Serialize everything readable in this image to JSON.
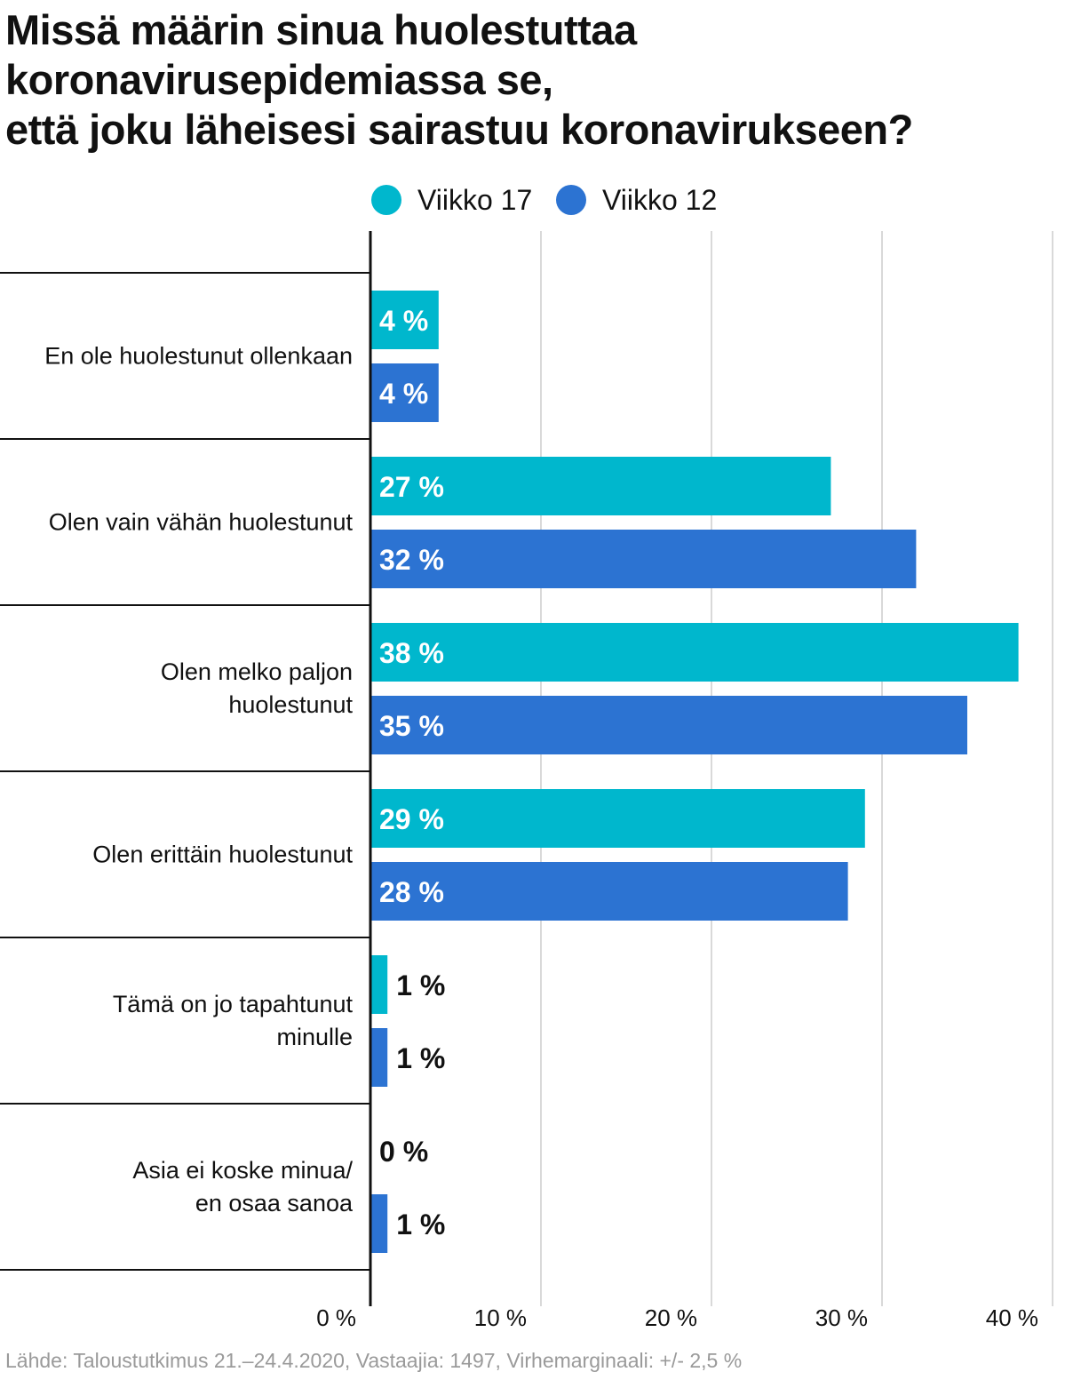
{
  "title_lines": [
    "Missä määrin sinua huolestuttaa",
    "koronavirusepidemiassa se,",
    "että joku läheisesi sairastuu koronavirukseen?"
  ],
  "footer": "Lähde: Taloustutkimus 21.–24.4.2020, Vastaajia: 1497, Virhemarginaali: +/- 2,5 %",
  "colors": {
    "week17": "#00b7cd",
    "week12": "#2c73d2",
    "grid": "#d9d9d9",
    "axis": "#111111"
  },
  "chart_data": {
    "type": "bar",
    "orientation": "horizontal",
    "title": "Missä määrin sinua huolestuttaa koronavirusepidemiassa se, että joku läheisesi sairastuu koronavirukseen?",
    "categories": [
      [
        "En ole huolestunut ollenkaan"
      ],
      [
        "Olen vain vähän huolestunut"
      ],
      [
        "Olen melko paljon",
        "huolestunut"
      ],
      [
        "Olen erittäin huolestunut"
      ],
      [
        "Tämä on jo tapahtunut",
        "minulle"
      ],
      [
        "Asia ei koske minua/",
        "en osaa sanoa"
      ]
    ],
    "series": [
      {
        "name": "Viikko 17",
        "color": "#00b7cd",
        "values": [
          4,
          27,
          38,
          29,
          1,
          0
        ],
        "labels": [
          "4 %",
          "27 %",
          "38 %",
          "29 %",
          "1 %",
          "0 %"
        ]
      },
      {
        "name": "Viikko 12",
        "color": "#2c73d2",
        "values": [
          4,
          32,
          35,
          28,
          1,
          1
        ],
        "labels": [
          "4 %",
          "32 %",
          "35 %",
          "28 %",
          "1 %",
          "1 %"
        ]
      }
    ],
    "xlim": [
      0,
      40
    ],
    "ticks": [
      0,
      10,
      20,
      30,
      40
    ],
    "tick_labels": [
      "0 %",
      "10 %",
      "20 %",
      "30 %",
      "40 %"
    ],
    "grid": true,
    "legend_position": "top"
  }
}
